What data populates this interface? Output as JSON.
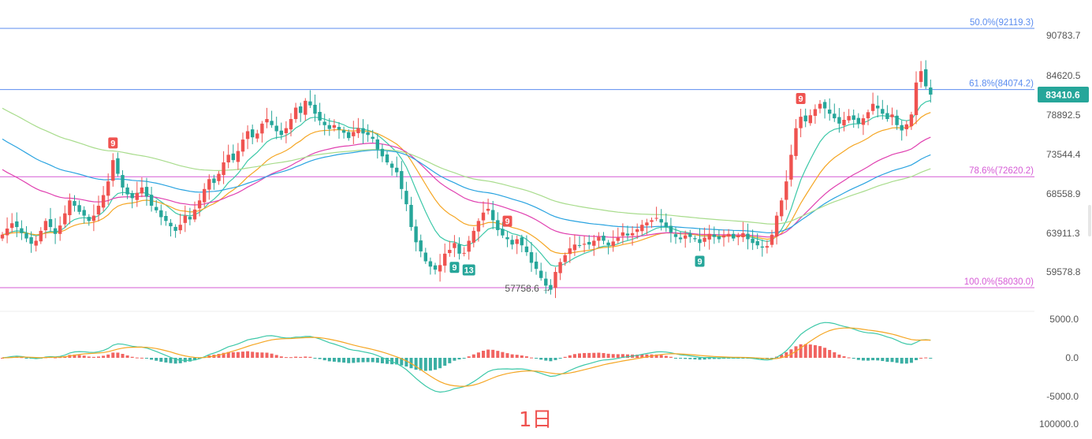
{
  "colors": {
    "up": "#ef5350",
    "down": "#26a69a",
    "fib_blue": "#5b8def",
    "fib_magenta": "#d65bd6",
    "ma_cyan": "#3cc8a8",
    "ma_orange": "#f5a623",
    "ma_magenta": "#e040b0",
    "ma_blue": "#29a3e0",
    "ma_green": "#a8dc8c",
    "price_badge": "#26a69a"
  },
  "timeframe_label": "1日",
  "price_axis": {
    "ticks": [
      "90783.7",
      "84620.5",
      "78892.5",
      "73544.4",
      "68558.9",
      "63911.3",
      "59578.8"
    ],
    "current_price": "83410.6"
  },
  "macd_axis": {
    "ticks": [
      "5000.0",
      "0.0",
      "-5000.0",
      "100000.0"
    ]
  },
  "fib_levels": [
    {
      "label": "50.0%(92119.3)",
      "value": 92119.3,
      "color": "#5b8def"
    },
    {
      "label": "61.8%(84074.2)",
      "value": 84074.2,
      "color": "#5b8def"
    },
    {
      "label": "78.6%(72620.2)",
      "value": 72620.2,
      "color": "#d65bd6"
    },
    {
      "label": "100.0%(58030.0)",
      "value": 58030.0,
      "color": "#d65bd6"
    }
  ],
  "low_annotation": "57758.6 →",
  "td_markers": [
    {
      "text": "9",
      "type": "sell",
      "index": 23
    },
    {
      "text": "9",
      "type": "buy",
      "index": 94
    },
    {
      "text": "13",
      "type": "buy",
      "index": 97
    },
    {
      "text": "9",
      "type": "sell",
      "index": 105
    },
    {
      "text": "9",
      "type": "buy",
      "index": 145
    },
    {
      "text": "9",
      "type": "sell",
      "index": 166
    }
  ],
  "chart_data": {
    "type": "candlestick",
    "title": "",
    "ylim": [
      57000,
      93500
    ],
    "candle_count": 193,
    "close_series": [
      65000,
      65800,
      66500,
      66000,
      65200,
      64500,
      63800,
      64200,
      65500,
      66800,
      66000,
      65100,
      66200,
      67800,
      69500,
      68800,
      68000,
      67500,
      66800,
      67500,
      68800,
      70200,
      72000,
      74800,
      73000,
      71200,
      70300,
      69800,
      70500,
      71200,
      70000,
      68800,
      68200,
      67300,
      66800,
      66100,
      65500,
      66300,
      67500,
      67000,
      68300,
      69500,
      71000,
      72300,
      71800,
      73000,
      74500,
      75500,
      74800,
      76000,
      77500,
      78600,
      77800,
      78300,
      79600,
      80200,
      79400,
      78600,
      78100,
      79000,
      80200,
      81700,
      81000,
      82600,
      82000,
      80900,
      80000,
      79400,
      78900,
      79400,
      78800,
      78400,
      77700,
      78500,
      79000,
      78300,
      78100,
      77600,
      76200,
      75300,
      74500,
      73800,
      73200,
      71000,
      69000,
      66000,
      64000,
      62800,
      61500,
      60800,
      60400,
      61000,
      62500,
      63000,
      63900,
      62500,
      62600,
      64200,
      65500,
      66800,
      67900,
      68400,
      66900,
      65600,
      64900,
      64400,
      63700,
      64400,
      63600,
      62700,
      61300,
      60500,
      59300,
      58300,
      57758,
      60100,
      61400,
      62300,
      63200,
      63700,
      63600,
      63800,
      63700,
      64200,
      64700,
      64200,
      63600,
      64100,
      64600,
      65300,
      64900,
      65200,
      65700,
      66300,
      66600,
      66900,
      67200,
      66600,
      66000,
      65300,
      64700,
      64400,
      64900,
      64700,
      64400,
      63900,
      64600,
      65100,
      64700,
      64400,
      64900,
      65100,
      64500,
      64900,
      65200,
      64400,
      63900,
      63600,
      63300,
      63500,
      65000,
      67500,
      69500,
      72000,
      75500,
      79000,
      80500,
      79900,
      80700,
      81500,
      82200,
      81600,
      80900,
      80300,
      79600,
      80100,
      80600,
      80100,
      79600,
      80300,
      81100,
      82200,
      81600,
      80900,
      80200,
      80800,
      79400,
      78700,
      79500,
      80800,
      85000,
      86500,
      84500,
      83410.6
    ],
    "series": [
      {
        "name": "",
        "kind": "moving_average",
        "color": "#3cc8a8"
      },
      {
        "name": "",
        "kind": "moving_average",
        "color": "#f5a623"
      },
      {
        "name": "",
        "kind": "moving_average",
        "color": "#e040b0"
      },
      {
        "name": "",
        "kind": "moving_average",
        "color": "#29a3e0"
      },
      {
        "name": "",
        "kind": "moving_average",
        "color": "#a8dc8c"
      }
    ],
    "macd": {
      "ylim": [
        -6000,
        6000
      ]
    }
  }
}
